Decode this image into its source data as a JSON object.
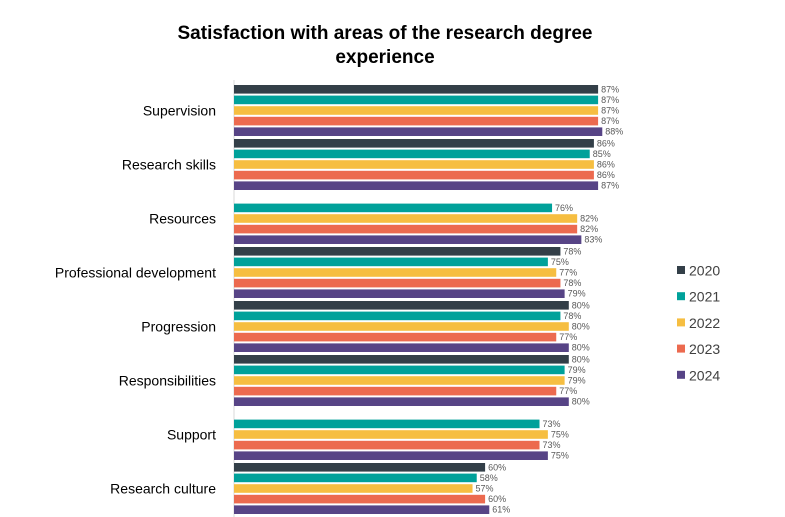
{
  "chart_data": {
    "type": "bar",
    "orientation": "horizontal",
    "title": "Satisfaction with areas of the research degree experience",
    "categories": [
      "Supervision",
      "Research skills",
      "Resources",
      "Professional development",
      "Progression",
      "Responsibilities",
      "Support",
      "Research culture"
    ],
    "series": [
      {
        "name": "2020",
        "color": "#333f48",
        "values": [
          87,
          86,
          null,
          78,
          80,
          80,
          null,
          60
        ]
      },
      {
        "name": "2021",
        "color": "#00a19a",
        "values": [
          87,
          85,
          76,
          75,
          78,
          79,
          73,
          58
        ]
      },
      {
        "name": "2022",
        "color": "#f6be41",
        "values": [
          87,
          86,
          82,
          77,
          80,
          79,
          75,
          57
        ]
      },
      {
        "name": "2023",
        "color": "#ec6a4f",
        "values": [
          87,
          86,
          82,
          78,
          77,
          77,
          73,
          60
        ]
      },
      {
        "name": "2024",
        "color": "#574486",
        "values": [
          88,
          87,
          83,
          79,
          80,
          80,
          75,
          61
        ]
      }
    ],
    "value_suffix": "%",
    "xlim": [
      0,
      100
    ],
    "grid": false,
    "legend": "right"
  }
}
